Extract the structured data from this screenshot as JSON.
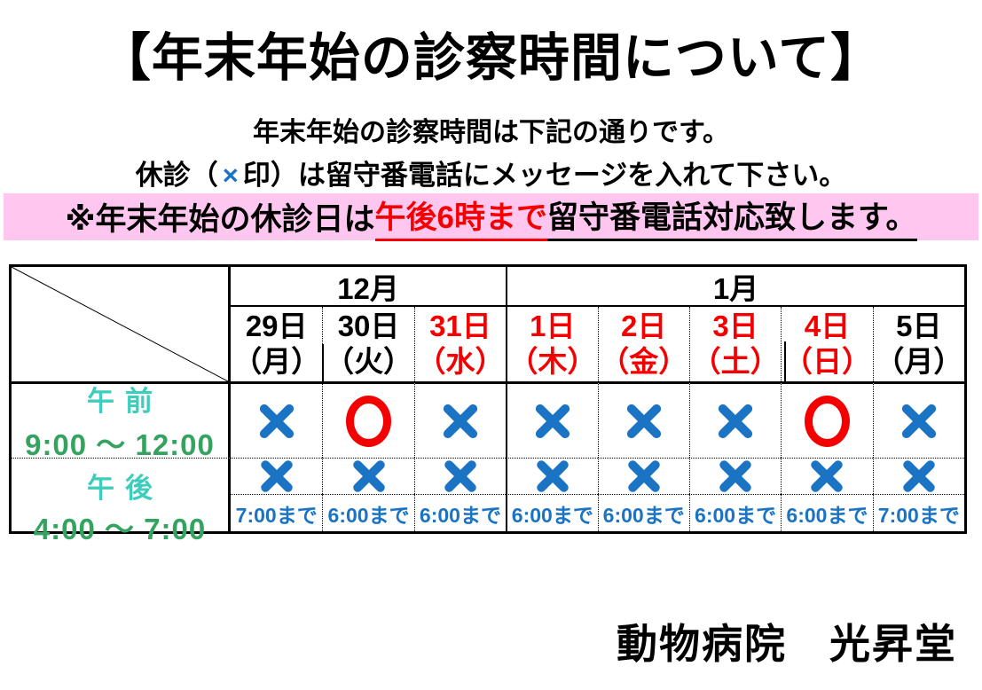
{
  "title": "【年末年始の診察時間について】",
  "intro": {
    "line1": "年末年始の診察時間は下記の通りです。",
    "line2_prefix": "休診（",
    "line2_x": "×",
    "line2_suffix": "印）は留守番電話にメッセージを入れて下さい。"
  },
  "notice": {
    "prefix": "※年末年始の休診日は",
    "highlight": "午後6時まで",
    "suffix": "留守番電話対応致します。"
  },
  "table": {
    "month_groups": [
      {
        "label": "12月",
        "span": 3
      },
      {
        "label": "1月",
        "span": 5
      }
    ],
    "dates": [
      {
        "day": "29日",
        "weekday": "（月）",
        "color": "black"
      },
      {
        "day": "30日",
        "weekday": "（火）",
        "color": "black"
      },
      {
        "day": "31日",
        "weekday": "（水）",
        "color": "red"
      },
      {
        "day": "1日",
        "weekday": "（木）",
        "color": "red"
      },
      {
        "day": "2日",
        "weekday": "（金）",
        "color": "red"
      },
      {
        "day": "3日",
        "weekday": "（土）",
        "color": "red"
      },
      {
        "day": "4日",
        "weekday": "（日）",
        "color": "red"
      },
      {
        "day": "5日",
        "weekday": "（月）",
        "color": "black"
      }
    ],
    "rows": [
      {
        "label_top": "午前",
        "label_bottom": "9:00 ～ 12:00",
        "marks": [
          "×",
          "○",
          "×",
          "×",
          "×",
          "×",
          "○",
          "×"
        ]
      },
      {
        "label_top": "午後",
        "label_bottom": "4:00 ～ 7:00",
        "marks": [
          "×",
          "×",
          "×",
          "×",
          "×",
          "×",
          "×",
          "×"
        ],
        "until": [
          "7:00まで",
          "6:00まで",
          "6:00まで",
          "6:00まで",
          "6:00まで",
          "6:00まで",
          "6:00まで",
          "7:00まで"
        ]
      }
    ]
  },
  "footer": "動物病院　光昇堂",
  "colors": {
    "blue": "#1b73c4",
    "red": "#f50000",
    "teal": "#3ecdbd",
    "green": "#35a360",
    "pink": "#ffc6f0"
  }
}
